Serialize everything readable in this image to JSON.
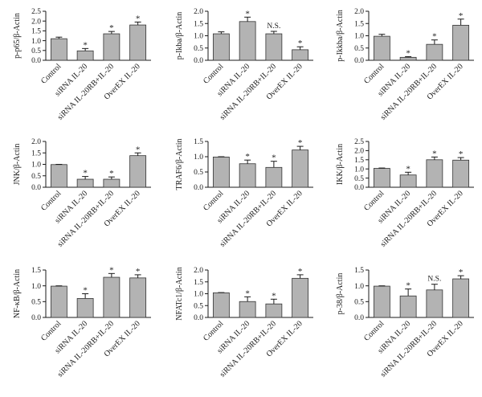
{
  "categories": [
    "Control",
    "siRNA IL-20",
    "siRNA IL-20RB+IL-20",
    "OverEX IL-20"
  ],
  "colors": {
    "bar": "#b3b3b3",
    "bar_stroke": "#333333",
    "axis": "#1a1a1a"
  },
  "chart_data": [
    {
      "type": "bar",
      "ylabel": "p-p65/β-Actin",
      "ylim": [
        0,
        2.5
      ],
      "ticks": [
        "0.0",
        "0.5",
        "1.0",
        "1.5",
        "2.0",
        "2.5"
      ],
      "categories": [
        "Control",
        "siRNA IL-20",
        "siRNA IL-20RB+IL-20",
        "OverEX IL-20"
      ],
      "values": [
        1.1,
        0.48,
        1.35,
        1.8
      ],
      "errors": [
        0.08,
        0.12,
        0.12,
        0.15
      ],
      "annotations": [
        "",
        "*",
        "*",
        "*"
      ]
    },
    {
      "type": "bar",
      "ylabel": "p-Ikba/β-Actin",
      "ylim": [
        0,
        2.0
      ],
      "ticks": [
        "0.0",
        "0.5",
        "1.0",
        "1.5",
        "2.0"
      ],
      "categories": [
        "Control",
        "siRNA IL-20",
        "siRNA IL-20RB+IL-20",
        "OverEX IL-20"
      ],
      "values": [
        1.08,
        1.58,
        1.08,
        0.43
      ],
      "errors": [
        0.08,
        0.18,
        0.1,
        0.12
      ],
      "annotations": [
        "",
        "*",
        "N.S.",
        "*"
      ]
    },
    {
      "type": "bar",
      "ylabel": "p-Ikkba/β-Actin",
      "ylim": [
        0,
        2.0
      ],
      "ticks": [
        "0.0",
        "0.5",
        "1.0",
        "1.5",
        "2.0"
      ],
      "categories": [
        "Control",
        "siRNA IL-20",
        "siRNA IL-20RB+IL-20",
        "OverEX IL-20"
      ],
      "values": [
        0.98,
        0.12,
        0.65,
        1.43
      ],
      "errors": [
        0.08,
        0.03,
        0.18,
        0.25
      ],
      "annotations": [
        "",
        "*",
        "*",
        "*"
      ]
    },
    {
      "type": "bar",
      "ylabel": "JNK/β-Actin",
      "ylim": [
        0,
        2.0
      ],
      "ticks": [
        "0.0",
        "0.5",
        "1.0",
        "1.5",
        "2.0"
      ],
      "categories": [
        "Control",
        "siRNA IL-20",
        "siRNA IL-20RB+IL-20",
        "OverEX IL-20"
      ],
      "values": [
        0.99,
        0.35,
        0.35,
        1.38
      ],
      "errors": [
        0.01,
        0.12,
        0.1,
        0.12
      ],
      "annotations": [
        "",
        "*",
        "*",
        "*"
      ]
    },
    {
      "type": "bar",
      "ylabel": "TRAF6/β-Actin",
      "ylim": [
        0,
        1.5
      ],
      "ticks": [
        "0.0",
        "0.5",
        "1.0",
        "1.5"
      ],
      "categories": [
        "Control",
        "siRNA IL-20",
        "siRNA IL-20RB+IL-20",
        "OverEX IL-20"
      ],
      "values": [
        0.99,
        0.77,
        0.65,
        1.22
      ],
      "errors": [
        0.01,
        0.12,
        0.2,
        0.12
      ],
      "annotations": [
        "",
        "*",
        "*",
        "*"
      ]
    },
    {
      "type": "bar",
      "ylabel": "IKK/β-Actin",
      "ylim": [
        0,
        2.5
      ],
      "ticks": [
        "0.0",
        "0.5",
        "1.0",
        "1.5",
        "2.0",
        "2.5"
      ],
      "categories": [
        "Control",
        "siRNA IL-20",
        "siRNA IL-20RB+IL-20",
        "OverEX IL-20"
      ],
      "values": [
        1.03,
        0.67,
        1.5,
        1.48
      ],
      "errors": [
        0.02,
        0.15,
        0.15,
        0.14
      ],
      "annotations": [
        "",
        "*",
        "*",
        "*"
      ]
    },
    {
      "type": "bar",
      "ylabel": "NF-κB/β-Actin",
      "ylim": [
        0,
        1.5
      ],
      "ticks": [
        "0.0",
        "0.5",
        "1.0",
        "1.5"
      ],
      "categories": [
        "Control",
        "siRNA IL-20",
        "siRNA IL-20RB+IL-20",
        "OverEX IL-20"
      ],
      "values": [
        0.99,
        0.6,
        1.27,
        1.25
      ],
      "errors": [
        0.01,
        0.15,
        0.12,
        0.1
      ],
      "annotations": [
        "",
        "*",
        "*",
        "*"
      ]
    },
    {
      "type": "bar",
      "ylabel": "NFATc1/β-Actin",
      "ylim": [
        0,
        2.0
      ],
      "ticks": [
        "0.0",
        "0.5",
        "1.0",
        "1.5",
        "2.0"
      ],
      "categories": [
        "Control",
        "siRNA IL-20",
        "siRNA IL-20RB+IL-20",
        "OverEX IL-20"
      ],
      "values": [
        1.04,
        0.67,
        0.57,
        1.65
      ],
      "errors": [
        0.01,
        0.2,
        0.2,
        0.15
      ],
      "annotations": [
        "",
        "*",
        "*",
        "*"
      ]
    },
    {
      "type": "bar",
      "ylabel": "p-38/β-Actin",
      "ylim": [
        0,
        1.5
      ],
      "ticks": [
        "0.0",
        "0.5",
        "1.0",
        "1.5"
      ],
      "categories": [
        "Control",
        "siRNA IL-20",
        "siRNA IL-20RB+IL-20",
        "OverEX IL-20"
      ],
      "values": [
        0.99,
        0.68,
        0.87,
        1.22
      ],
      "errors": [
        0.01,
        0.22,
        0.18,
        0.1
      ],
      "annotations": [
        "",
        "*",
        "N.S.",
        "*"
      ]
    }
  ]
}
